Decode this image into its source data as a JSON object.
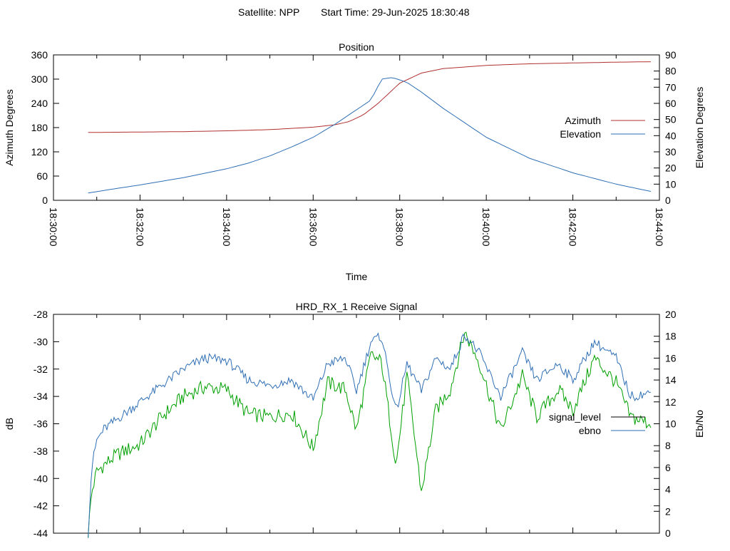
{
  "header": {
    "satellite": "Satellite: NPP",
    "start_time": "Start Time: 29-Jun-2025 18:30:48"
  },
  "colors": {
    "azimuth": "#b03030",
    "elevation": "#2f6fb5",
    "signal_level": "#00a000",
    "ebno": "#2f6fb5",
    "legend_signal_level": "#000000"
  },
  "chart_data": [
    {
      "type": "line",
      "title": "Position",
      "xlabel": "Time",
      "ylabel": "Azimuth Degrees",
      "y2label": "Elevation Degrees",
      "xlim": [
        "18:30:00",
        "18:44:00"
      ],
      "ylim": [
        0,
        360
      ],
      "y2lim": [
        0,
        90
      ],
      "x_ticks": [
        "18:30:00",
        "18:32:00",
        "18:34:00",
        "18:36:00",
        "18:38:00",
        "18:40:00",
        "18:42:00",
        "18:44:00"
      ],
      "y_ticks": [
        "0",
        "60",
        "120",
        "180",
        "240",
        "300",
        "360"
      ],
      "y2_ticks": [
        "0",
        "10",
        "20",
        "30",
        "40",
        "50",
        "60",
        "70",
        "80",
        "90"
      ],
      "legend": "right",
      "series": [
        {
          "name": "Azimuth",
          "axis": "y",
          "color": "#b03030",
          "x": [
            "18:30:48",
            "18:32:00",
            "18:33:00",
            "18:34:00",
            "18:35:00",
            "18:35:30",
            "18:36:00",
            "18:36:30",
            "18:36:50",
            "18:37:10",
            "18:37:30",
            "18:37:45",
            "18:38:00",
            "18:38:30",
            "18:39:00",
            "18:40:00",
            "18:41:00",
            "18:42:00",
            "18:43:00",
            "18:43:48"
          ],
          "values": [
            168,
            169,
            170,
            172,
            175,
            178,
            181,
            187,
            195,
            212,
            240,
            265,
            290,
            315,
            326,
            334,
            338,
            340,
            342,
            343
          ]
        },
        {
          "name": "Elevation",
          "axis": "y2",
          "color": "#2f6fb5",
          "x": [
            "18:30:48",
            "18:31:30",
            "18:32:00",
            "18:33:00",
            "18:34:00",
            "18:34:30",
            "18:35:00",
            "18:35:30",
            "18:36:00",
            "18:36:30",
            "18:37:00",
            "18:37:20",
            "18:37:35",
            "18:37:50",
            "18:38:10",
            "18:38:30",
            "18:39:00",
            "18:39:30",
            "18:40:00",
            "18:41:00",
            "18:42:00",
            "18:43:00",
            "18:43:48"
          ],
          "values": [
            4.5,
            7.5,
            9.5,
            14,
            19.5,
            23,
            27.5,
            33,
            39,
            47,
            56,
            62,
            75,
            76,
            73,
            67,
            57,
            48,
            39,
            26,
            17,
            10,
            5.5
          ]
        }
      ]
    },
    {
      "type": "line",
      "title": "HRD_RX_1 Receive Signal",
      "ylabel": "dB",
      "y2label": "Eb/No",
      "xlim": [
        "18:30:00",
        "18:44:00"
      ],
      "ylim": [
        -44,
        -28
      ],
      "y2lim": [
        0,
        20
      ],
      "y_ticks": [
        "-44",
        "-42",
        "-40",
        "-38",
        "-36",
        "-34",
        "-32",
        "-30",
        "-28"
      ],
      "y2_ticks": [
        "0",
        "2",
        "4",
        "6",
        "8",
        "10",
        "12",
        "14",
        "16",
        "18",
        "20"
      ],
      "legend": "right",
      "series": [
        {
          "name": "signal_level",
          "axis": "y",
          "color": "#00a000",
          "x": [
            "18:30:48",
            "18:30:53",
            "18:31:00",
            "18:31:10",
            "18:31:30",
            "18:32:00",
            "18:32:30",
            "18:33:00",
            "18:33:30",
            "18:34:00",
            "18:34:30",
            "18:35:00",
            "18:35:30",
            "18:36:00",
            "18:36:20",
            "18:36:45",
            "18:37:00",
            "18:37:20",
            "18:37:35",
            "18:37:55",
            "18:38:10",
            "18:38:30",
            "18:38:50",
            "18:39:10",
            "18:39:30",
            "18:39:50",
            "18:40:20",
            "18:40:50",
            "18:41:10",
            "18:41:40",
            "18:42:00",
            "18:42:30",
            "18:43:00",
            "18:43:20",
            "18:43:48"
          ],
          "values": [
            -44,
            -41,
            -39.5,
            -39,
            -38.2,
            -37.5,
            -35.5,
            -34,
            -33.3,
            -33.5,
            -35.3,
            -35.5,
            -35.2,
            -37.8,
            -33,
            -33.5,
            -36.5,
            -31,
            -31.5,
            -39,
            -32.5,
            -41,
            -35,
            -33.5,
            -29.3,
            -31.5,
            -36.5,
            -32.5,
            -35.5,
            -33.5,
            -35,
            -31.2,
            -33,
            -35.5,
            -36
          ]
        },
        {
          "name": "ebno",
          "axis": "y2",
          "color": "#2f6fb5",
          "x": [
            "18:30:48",
            "18:30:53",
            "18:31:00",
            "18:31:10",
            "18:31:30",
            "18:32:00",
            "18:32:30",
            "18:33:00",
            "18:33:30",
            "18:34:00",
            "18:34:30",
            "18:35:00",
            "18:35:30",
            "18:36:00",
            "18:36:20",
            "18:36:45",
            "18:37:00",
            "18:37:20",
            "18:37:35",
            "18:37:55",
            "18:38:10",
            "18:38:30",
            "18:38:50",
            "18:39:10",
            "18:39:30",
            "18:39:50",
            "18:40:20",
            "18:40:50",
            "18:41:10",
            "18:41:40",
            "18:42:00",
            "18:42:30",
            "18:43:00",
            "18:43:20",
            "18:43:48"
          ],
          "values": [
            0,
            6,
            8.5,
            9.5,
            10.5,
            12,
            13.5,
            15,
            16,
            15.8,
            14,
            13.5,
            14,
            12.2,
            15.5,
            16,
            13,
            17.5,
            18,
            11,
            15.5,
            13,
            16,
            15,
            18.2,
            16.5,
            12.5,
            16.5,
            14,
            15.5,
            14,
            17.5,
            16,
            12.5,
            12.8
          ]
        }
      ]
    }
  ]
}
